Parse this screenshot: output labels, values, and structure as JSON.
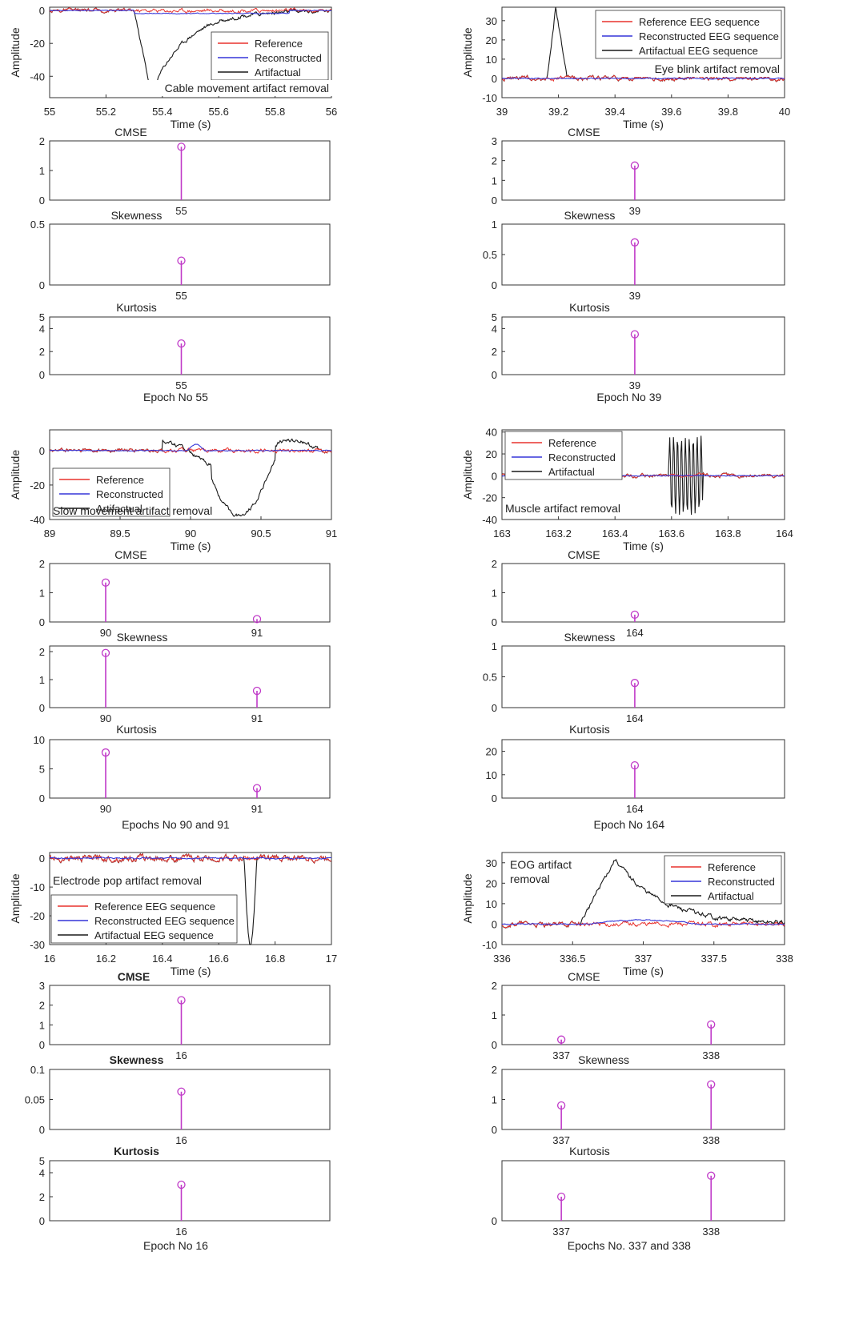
{
  "figure": {
    "xlabel_time": "Time (s)",
    "ylabel_amplitude": "Amplitude",
    "colors": {
      "reference": "#e8322d",
      "reconstructed": "#3535d8",
      "artifactual": "#1a1a1a",
      "stem": "#c03ac8"
    }
  },
  "chart_data": [
    {
      "id": "cable",
      "type": "line",
      "title": "Cable movement artifact removal",
      "xlabel": "Time (s)",
      "ylabel": "Amplitude",
      "xlim": [
        55,
        56
      ],
      "ylim": [
        -53,
        2
      ],
      "xticks": [
        55,
        55.2,
        55.4,
        55.6,
        55.8,
        56
      ],
      "xticklabels": [
        "55",
        "55.2",
        "55.4",
        "55.6",
        "55.8",
        "56"
      ],
      "yticks": [
        0,
        -20,
        -40
      ],
      "legend": [
        "Reference",
        "Reconstructed",
        "Artifactual"
      ],
      "legend_position": "lower-right",
      "artifact": {
        "kind": "cable",
        "t0": 55.3,
        "tp": 55.36,
        "peak": -50,
        "t1": 55.8
      },
      "metrics": [
        {
          "name": "CMSE",
          "ylim": [
            0,
            2
          ],
          "yticks": [
            0,
            1,
            2
          ],
          "epochs": [
            55
          ],
          "values": [
            1.8
          ]
        },
        {
          "name": "Skewness",
          "ylim": [
            0,
            0.5
          ],
          "yticks": [
            0,
            0.5
          ],
          "epochs": [
            55
          ],
          "values": [
            0.2
          ]
        },
        {
          "name": "Kurtosis",
          "ylim": [
            0,
            5
          ],
          "yticks": [
            0,
            2,
            4,
            5
          ],
          "epochs": [
            55
          ],
          "values": [
            2.7
          ]
        }
      ],
      "caption": "Epoch No 55"
    },
    {
      "id": "eyeblink",
      "type": "line",
      "title": "Eye blink artifact removal",
      "xlabel": "Time (s)",
      "ylabel": "Amplitude",
      "xlim": [
        39,
        40
      ],
      "ylim": [
        -10,
        37
      ],
      "xticks": [
        39,
        39.2,
        39.4,
        39.6,
        39.8,
        40
      ],
      "xticklabels": [
        "39",
        "39.2",
        "39.4",
        "39.6",
        "39.8",
        "40"
      ],
      "yticks": [
        -10,
        0,
        10,
        20,
        30
      ],
      "legend": [
        "Reference EEG sequence",
        "Reconstructed EEG sequence",
        "Artifactual EEG sequence"
      ],
      "legend_position": "top-right",
      "artifact": {
        "kind": "blink",
        "t0": 39.16,
        "tp": 39.19,
        "peak": 37,
        "t1": 39.23
      },
      "metrics": [
        {
          "name": "CMSE",
          "ylim": [
            0,
            3
          ],
          "yticks": [
            0,
            1,
            2,
            3
          ],
          "epochs": [
            39
          ],
          "values": [
            1.75
          ]
        },
        {
          "name": "Skewness",
          "ylim": [
            0,
            1
          ],
          "yticks": [
            0,
            0.5,
            1
          ],
          "epochs": [
            39
          ],
          "values": [
            0.7
          ]
        },
        {
          "name": "Kurtosis",
          "ylim": [
            0,
            5
          ],
          "yticks": [
            0,
            2,
            4,
            5
          ],
          "epochs": [
            39
          ],
          "values": [
            3.5
          ]
        }
      ],
      "caption": "Epoch No 39"
    },
    {
      "id": "slow",
      "type": "line",
      "title": "Slow movement artifact removal",
      "xlabel": "Time (s)",
      "ylabel": "Amplitude",
      "xlim": [
        89,
        91
      ],
      "ylim": [
        -40,
        12
      ],
      "xticks": [
        89,
        89.5,
        90,
        90.5,
        91
      ],
      "xticklabels": [
        "89",
        "89.5",
        "90",
        "90.5",
        "91"
      ],
      "yticks": [
        0,
        -20,
        -40
      ],
      "legend": [
        "Reference",
        "Reconstructed",
        "Artifactual"
      ],
      "legend_position": "lower-left",
      "artifact": {
        "kind": "slow",
        "t0": 89.8,
        "t1": 90.9,
        "peak": -38
      },
      "metrics": [
        {
          "name": "CMSE",
          "ylim": [
            0,
            2
          ],
          "yticks": [
            0,
            1,
            2
          ],
          "epochs": [
            90,
            91
          ],
          "values": [
            1.35,
            0.1
          ]
        },
        {
          "name": "Skewness",
          "ylim": [
            0,
            2.2
          ],
          "yticks": [
            0,
            1,
            2
          ],
          "epochs": [
            90,
            91
          ],
          "values": [
            1.95,
            0.6
          ]
        },
        {
          "name": "Kurtosis",
          "ylim": [
            0,
            10
          ],
          "yticks": [
            0,
            5,
            10
          ],
          "epochs": [
            90,
            91
          ],
          "values": [
            7.8,
            1.7
          ]
        }
      ],
      "caption": "Epochs No 90 and 91"
    },
    {
      "id": "muscle",
      "type": "line",
      "title": "Muscle artifact removal",
      "xlabel": "Time (s)",
      "ylabel": "Amplitude",
      "xlim": [
        163,
        164
      ],
      "ylim": [
        -40,
        42
      ],
      "xticks": [
        163,
        163.2,
        163.4,
        163.6,
        163.8,
        164
      ],
      "xticklabels": [
        "163",
        "163.2",
        "163.4",
        "163.6",
        "163.8",
        "164"
      ],
      "yticks": [
        -40,
        -20,
        0,
        20,
        40
      ],
      "legend": [
        "Reference",
        "Reconstructed",
        "Artifactual"
      ],
      "legend_position": "top-left",
      "artifact": {
        "kind": "muscle",
        "t0": 163.59,
        "t1": 163.71,
        "peak": 35
      },
      "metrics": [
        {
          "name": "CMSE",
          "ylim": [
            0,
            2
          ],
          "yticks": [
            0,
            1,
            2
          ],
          "epochs": [
            164
          ],
          "values": [
            0.25
          ]
        },
        {
          "name": "Skewness",
          "ylim": [
            0,
            1
          ],
          "yticks": [
            0,
            0.5,
            1
          ],
          "epochs": [
            164
          ],
          "values": [
            0.4
          ]
        },
        {
          "name": "Kurtosis",
          "ylim": [
            0,
            25
          ],
          "yticks": [
            0,
            10,
            20
          ],
          "epochs": [
            164
          ],
          "values": [
            14
          ]
        }
      ],
      "caption": "Epoch No 164"
    },
    {
      "id": "pop",
      "type": "line",
      "title": "Electrode pop artifact removal",
      "xlabel": "Time (s)",
      "ylabel": "Amplitude",
      "xlim": [
        16,
        17
      ],
      "ylim": [
        -30,
        2
      ],
      "xticks": [
        16,
        16.2,
        16.4,
        16.6,
        16.8,
        17
      ],
      "xticklabels": [
        "16",
        "16.2",
        "16.4",
        "16.6",
        "16.8",
        "17"
      ],
      "yticks": [
        0,
        -10,
        -20,
        -30
      ],
      "legend": [
        "Reference EEG sequence",
        "Reconstructed EEG sequence",
        "Artifactual EEG sequence"
      ],
      "legend_position": "lower-center",
      "artifact": {
        "kind": "pop",
        "t0": 16.69,
        "t1": 16.735,
        "peak": -30
      },
      "metrics": [
        {
          "name": "CMSE",
          "ylim": [
            0,
            3
          ],
          "yticks": [
            0,
            1,
            2,
            3
          ],
          "epochs": [
            16
          ],
          "values": [
            2.25
          ]
        },
        {
          "name": "Skewness",
          "ylim": [
            0,
            0.1
          ],
          "yticks": [
            0,
            0.05,
            0.1
          ],
          "epochs": [
            16
          ],
          "values": [
            0.063
          ]
        },
        {
          "name": "Kurtosis",
          "ylim": [
            0,
            5
          ],
          "yticks": [
            0,
            2,
            4,
            5
          ],
          "epochs": [
            16
          ],
          "values": [
            3
          ]
        }
      ],
      "caption": "Epoch No 16"
    },
    {
      "id": "eog",
      "type": "line",
      "title": "EOG artifact\nremoval",
      "xlabel": "Time (s)",
      "ylabel": "Amplitude",
      "xlim": [
        336,
        338
      ],
      "ylim": [
        -10,
        35
      ],
      "xticks": [
        336,
        336.5,
        337,
        337.5,
        338
      ],
      "xticklabels": [
        "336",
        "336.5",
        "337",
        "337.5",
        "338"
      ],
      "yticks": [
        -10,
        0,
        10,
        20,
        30
      ],
      "legend": [
        "Reference",
        "Reconstructed",
        "Artifactual"
      ],
      "legend_position": "top-right",
      "artifact": {
        "kind": "eog",
        "t0": 336.55,
        "tp": 336.8,
        "peak": 32,
        "t1": 337.6
      },
      "metrics": [
        {
          "name": "CMSE",
          "ylim": [
            0,
            2
          ],
          "yticks": [
            0,
            1,
            2
          ],
          "epochs": [
            337,
            338
          ],
          "values": [
            0.17,
            0.68
          ]
        },
        {
          "name": "Skewness",
          "ylim": [
            0,
            2
          ],
          "yticks": [
            0,
            1,
            2
          ],
          "epochs": [
            337,
            338
          ],
          "values": [
            0.8,
            1.5
          ]
        },
        {
          "name": "Kurtosis",
          "ylim": [
            0,
            2
          ],
          "yticks": [
            0
          ],
          "epochs": [
            337,
            338
          ],
          "values": [
            0.8,
            1.5
          ]
        }
      ],
      "caption": "Epochs No. 337 and 338"
    }
  ]
}
